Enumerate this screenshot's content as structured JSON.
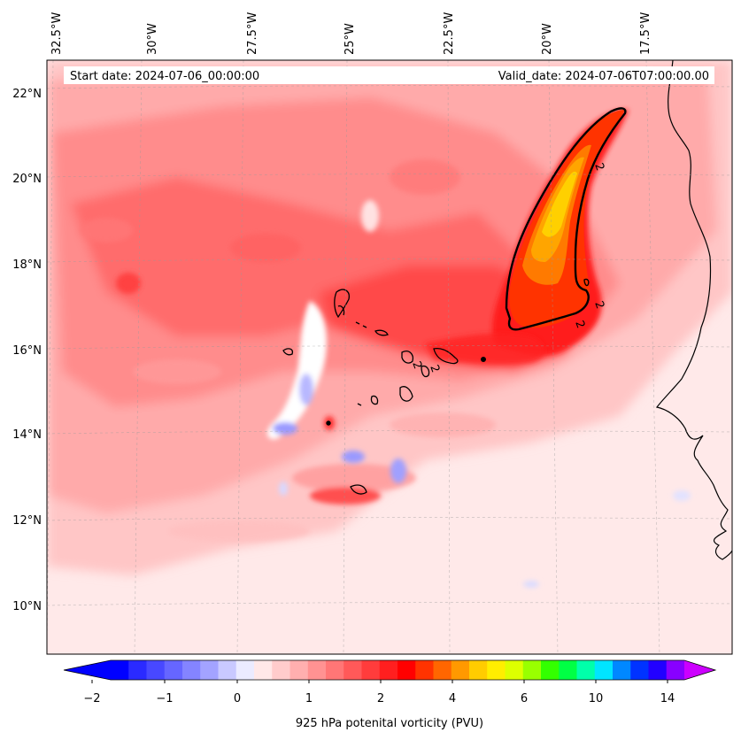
{
  "header": {
    "start_label": "Start date: 2024-07-06_00:00:00",
    "valid_label": "Valid_date: 2024-07-06T07:00:00.00"
  },
  "map": {
    "lon_labels": [
      "32.5°W",
      "30°W",
      "27.5°W",
      "25°W",
      "22.5°W",
      "20°W",
      "17.5°W"
    ],
    "lat_labels": [
      "22°N",
      "20°N",
      "18°N",
      "16°N",
      "14°N",
      "12°N",
      "10°N"
    ],
    "contour_labels": [
      "2",
      "2",
      "2",
      "2",
      "2"
    ],
    "colors": {
      "background": "#ffe9e9",
      "light_red": "#ffc4c4",
      "mid_red": "#ff8080",
      "red": "#ff3333",
      "deep_red": "#ff1a1a",
      "orange": "#ff6a00",
      "amber": "#ffa000",
      "yellow": "#ffd400",
      "blue_faint": "#dcdcff",
      "blue": "#8a8aff",
      "contour": "#000000",
      "coast": "#000000"
    }
  },
  "colorbar": {
    "label": "925 hPa potenital vorticity (PVU)",
    "ticks": [
      "−2",
      "−1",
      "0",
      "1",
      "2",
      "4",
      "6",
      "10",
      "14"
    ],
    "colors": [
      "#0000ff",
      "#2a2aff",
      "#4848ff",
      "#6666ff",
      "#8484ff",
      "#a3a3ff",
      "#c9c9ff",
      "#ebebff",
      "#ffe8e8",
      "#ffcccc",
      "#ffafaf",
      "#ff9292",
      "#ff7676",
      "#ff5959",
      "#ff3c3c",
      "#ff1f1f",
      "#ff0000",
      "#ff3300",
      "#ff6600",
      "#ff9900",
      "#ffcc00",
      "#ffee00",
      "#ddff00",
      "#99ff00",
      "#33ff00",
      "#00ff44",
      "#00ffaa",
      "#00e5ff",
      "#0088ff",
      "#0033ff",
      "#2200ff",
      "#8800ff"
    ],
    "under_color": "#0000ff",
    "over_color": "#cc00ff"
  }
}
